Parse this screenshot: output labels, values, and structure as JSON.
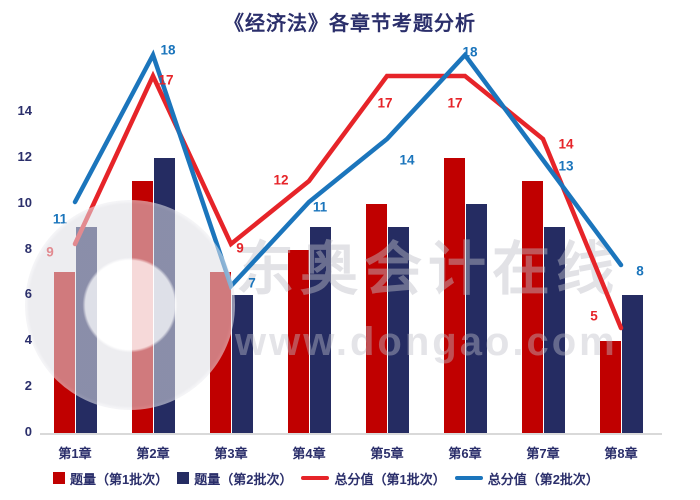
{
  "title": "《经济法》各章节考题分析",
  "watermark": {
    "brand_text": "东奥会计在线",
    "site_text": "www.dongao.com"
  },
  "colors": {
    "title_text": "#2B2F6B",
    "axis_text": "#2B2F6B",
    "axis_line": "#D9D9D9",
    "bar_batch1": "#C00000",
    "bar_batch2": "#252C62",
    "line_batch1": "#E62429",
    "line_batch2": "#1B75BC"
  },
  "chart_data": {
    "type": "combo-bar-line",
    "title": "《经济法》各章节考题分析",
    "categories": [
      "第1章",
      "第2章",
      "第3章",
      "第4章",
      "第5章",
      "第6章",
      "第7章",
      "第8章"
    ],
    "series": [
      {
        "name": "题量（第1批次）",
        "type": "bar",
        "color": "#C00000",
        "values": [
          7,
          11,
          7,
          8,
          10,
          12,
          11,
          4
        ]
      },
      {
        "name": "题量（第2批次）",
        "type": "bar",
        "color": "#252C62",
        "values": [
          9,
          12,
          6,
          9,
          9,
          10,
          9,
          6
        ]
      },
      {
        "name": "总分值（第1批次）",
        "type": "line",
        "color": "#E62429",
        "values": [
          9,
          17,
          9,
          12,
          17,
          17,
          14,
          5
        ]
      },
      {
        "name": "总分值（第2批次）",
        "type": "line",
        "color": "#1B75BC",
        "values": [
          11,
          18,
          7,
          11,
          14,
          18,
          13,
          8
        ]
      }
    ],
    "y_axis": {
      "ticks": [
        0,
        2,
        4,
        6,
        8,
        10,
        12,
        14
      ],
      "range": [
        0,
        14
      ]
    },
    "data_labels": "shown on line series only",
    "grid": false,
    "legend_position": "bottom"
  }
}
